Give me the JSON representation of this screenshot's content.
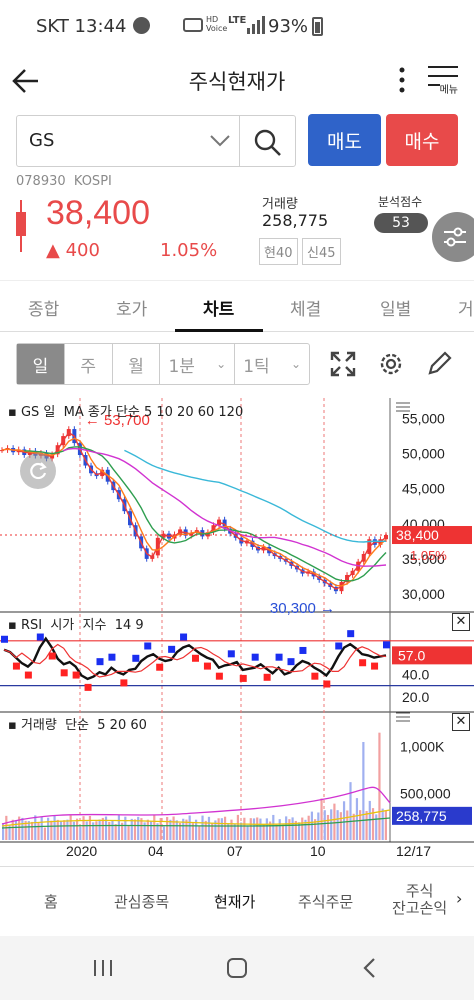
{
  "status": {
    "carrier_time": "SKT 13:44",
    "battery": "93%",
    "lte": "LTE",
    "hd": "HD\nVoice"
  },
  "header": {
    "title": "주식현재가",
    "menu_label": "메뉴"
  },
  "search": {
    "value": "GS"
  },
  "actions": {
    "sell": "매도",
    "buy": "매수"
  },
  "stock": {
    "code_market": "078930  KOSPI",
    "price": "38,400",
    "change": "▲ 400",
    "change_pct": "1.05%",
    "volume_label": "거래량",
    "volume": "258,775",
    "badge1": "현40",
    "badge2": "신45",
    "score_label": "분석점수",
    "score": "53"
  },
  "tabs": [
    "종합",
    "호가",
    "차트",
    "체결",
    "일별",
    "거"
  ],
  "active_tab": "차트",
  "period": {
    "buttons": [
      "일",
      "주",
      "월"
    ],
    "min_select": "1분",
    "tick_select": "1틱"
  },
  "chart_data": [
    {
      "type": "line",
      "title": "GS 일  MA 종가 단순 5 10 20 60 120",
      "legend": [
        "5",
        "10",
        "20",
        "60",
        "120"
      ],
      "colors": {
        "ma5": "#e83b3b",
        "ma10": "#ff7c1c",
        "ma20": "#2e9e4f",
        "ma60": "#d133d1",
        "ma120": "#3ab8d8"
      },
      "yticks": [
        "55,000",
        "50,000",
        "45,000",
        "40,000",
        "35,000",
        "30,000"
      ],
      "ylim": [
        28000,
        56500
      ],
      "xticks": [
        "2020",
        "04",
        "07",
        "10",
        "12/17"
      ],
      "annotations": {
        "high": "53,700",
        "low": "30,300",
        "current_price": "38,400",
        "current_pct": "1.05%"
      },
      "close_series": [
        50500,
        50800,
        50200,
        50600,
        49800,
        50400,
        49700,
        50100,
        49300,
        49900,
        51200,
        52500,
        53500,
        51500,
        49800,
        48300,
        47200,
        46800,
        47700,
        46000,
        44800,
        43500,
        41800,
        39800,
        38200,
        36500,
        35000,
        35500,
        38000,
        38600,
        37900,
        38500,
        39200,
        38300,
        38700,
        39100,
        38200,
        38800,
        39800,
        40600,
        39300,
        38600,
        38000,
        37200,
        37600,
        36700,
        36200,
        36700,
        35800,
        35400,
        35000,
        34600,
        34000,
        33500,
        32900,
        33200,
        32500,
        32000,
        31500,
        31000,
        30400,
        31700,
        32700,
        33300,
        34600,
        35700,
        37800,
        37000,
        37800,
        38400
      ]
    },
    {
      "type": "line",
      "title": "RSI  시가  지수  14 9",
      "yticks": [
        "57.0",
        "40.0",
        "20.0"
      ],
      "ylim": [
        10,
        85
      ],
      "rsi": [
        62,
        60,
        55,
        50,
        47,
        52,
        64,
        72,
        64,
        54,
        49,
        51,
        47,
        39,
        36,
        38,
        42,
        40,
        46,
        42,
        40,
        44,
        45,
        52,
        56,
        58,
        54,
        52,
        53,
        60,
        64,
        66,
        62,
        58,
        55,
        53,
        46,
        48,
        49,
        51,
        44,
        45,
        46,
        49,
        45,
        41,
        46,
        40,
        42,
        48,
        52,
        50,
        46,
        43,
        39,
        46,
        56,
        64,
        67,
        63,
        58,
        57,
        55,
        56,
        57
      ]
    },
    {
      "type": "bar",
      "title": "거래량  단순  5 20 60",
      "yticks": [
        "1,000K",
        "500,000"
      ],
      "current_volume": "258,775"
    }
  ],
  "bottom_nav": [
    "홈",
    "관심종목",
    "현재가",
    "주식주문",
    "주식\n잔고손익"
  ]
}
